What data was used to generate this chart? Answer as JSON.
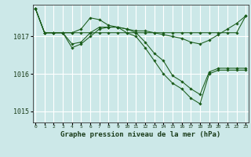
{
  "background_color": "#cce8e8",
  "grid_color": "#ffffff",
  "line_color": "#1a5c1a",
  "title": "Graphe pression niveau de la mer (hPa)",
  "x_labels": [
    "0",
    "1",
    "2",
    "3",
    "4",
    "5",
    "6",
    "7",
    "8",
    "9",
    "10",
    "11",
    "12",
    "13",
    "14",
    "15",
    "16",
    "17",
    "18",
    "19",
    "20",
    "21",
    "22",
    "23"
  ],
  "ylim": [
    1014.7,
    1017.85
  ],
  "yticks": [
    1015,
    1016,
    1017
  ],
  "series": [
    [
      1017.75,
      1017.1,
      1017.1,
      1017.1,
      1017.1,
      1017.1,
      1017.1,
      1017.1,
      1017.1,
      1017.1,
      1017.1,
      1017.1,
      1017.1,
      1017.1,
      1017.1,
      1017.1,
      1017.1,
      1017.1,
      1017.1,
      1017.1,
      1017.1,
      1017.1,
      1017.1,
      1017.55
    ],
    [
      1017.75,
      1017.1,
      1017.1,
      1017.1,
      1017.1,
      1017.2,
      1017.5,
      1017.45,
      1017.3,
      1017.25,
      1017.2,
      1017.15,
      1017.15,
      1017.1,
      1017.05,
      1017.0,
      1016.95,
      1016.85,
      1016.8,
      1016.9,
      1017.05,
      1017.2,
      1017.35,
      1017.55
    ],
    [
      1017.75,
      1017.1,
      1017.1,
      1017.1,
      1016.8,
      1016.85,
      1017.1,
      1017.25,
      1017.25,
      1017.25,
      1017.2,
      1017.1,
      1016.85,
      1016.55,
      1016.35,
      1015.95,
      1015.8,
      1015.6,
      1015.45,
      1016.05,
      1016.15,
      1016.15,
      1016.15,
      1016.15
    ],
    [
      1017.75,
      1017.1,
      1017.1,
      1017.1,
      1016.7,
      1016.8,
      1017.0,
      1017.2,
      1017.25,
      1017.25,
      1017.1,
      1017.0,
      1016.7,
      1016.35,
      1016.0,
      1015.75,
      1015.6,
      1015.35,
      1015.2,
      1016.0,
      1016.1,
      1016.1,
      1016.1,
      1016.1
    ]
  ]
}
